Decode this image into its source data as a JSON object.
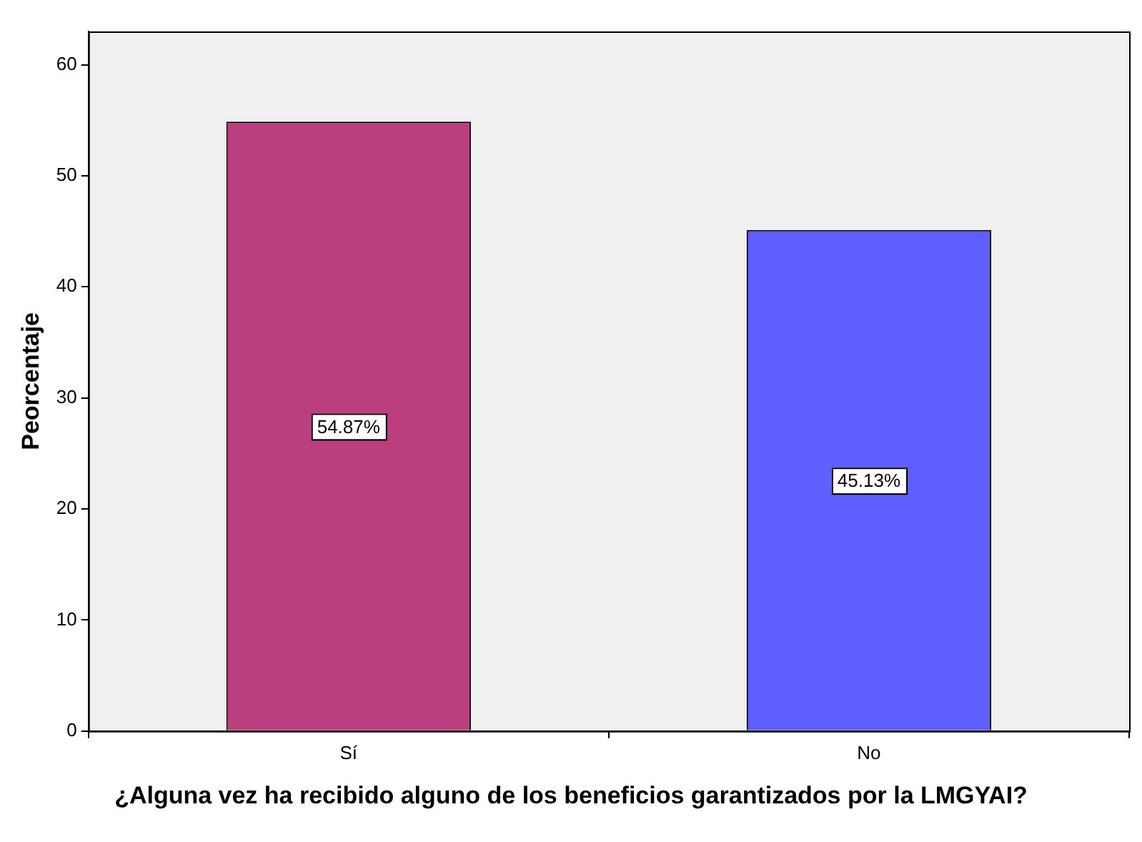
{
  "chart_data": {
    "type": "bar",
    "xlabel": "¿Alguna vez ha recibido alguno de los beneficios garantizados por la LMGYAI?",
    "ylabel": "Peorcentaje",
    "categories": [
      "Sí",
      "No"
    ],
    "values": [
      54.87,
      45.13
    ],
    "colors": [
      "#bb3f7f",
      "#5f5fff"
    ],
    "value_labels": [
      "54.87%",
      "45.13%"
    ],
    "ylim": [
      0,
      63
    ],
    "yticks": [
      0,
      10,
      20,
      30,
      40,
      50,
      60
    ],
    "grid": false,
    "legend": false
  }
}
